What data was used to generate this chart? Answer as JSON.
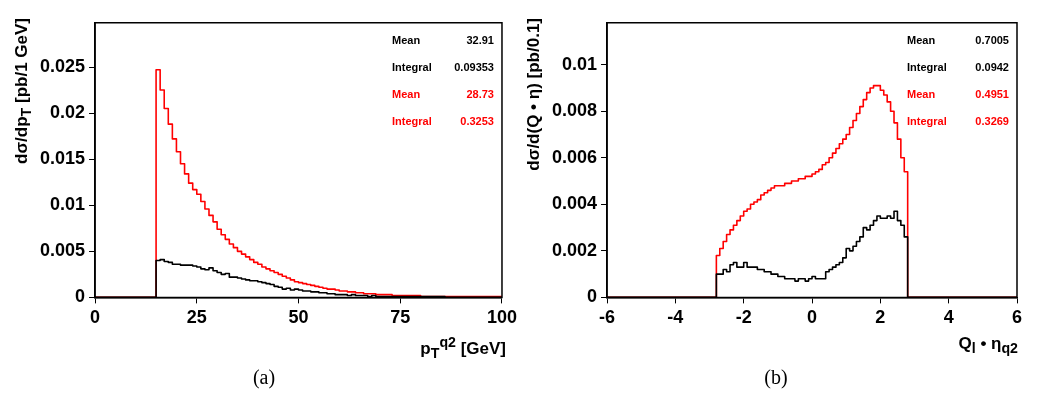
{
  "chart_data": [
    {
      "type": "histogram",
      "ylabel": "dσ/dp$_{T}$ [pb/1 GeV]",
      "xlabel": "p$_{T}$$^{q2}$ [GeV]",
      "xlim": [
        0,
        100
      ],
      "xticks": [
        0,
        25,
        50,
        75,
        100
      ],
      "ylim": [
        0,
        0.0298
      ],
      "yticks": [
        0,
        0.005,
        0.01,
        0.015,
        0.02,
        0.025
      ],
      "bins": [
        0,
        15,
        16,
        17,
        18,
        19,
        20,
        21,
        22,
        23,
        24,
        25,
        26,
        27,
        28,
        29,
        30,
        31,
        32,
        33,
        34,
        35,
        36,
        37,
        38,
        39,
        40,
        41,
        42,
        43,
        44,
        45,
        46,
        47,
        48,
        49,
        50,
        51,
        52,
        53,
        54,
        55,
        56,
        57,
        58,
        59,
        60,
        61,
        62,
        63,
        64,
        65,
        66,
        67,
        68,
        69,
        70,
        71,
        72,
        73,
        74,
        75,
        76,
        77,
        78,
        79,
        80,
        81,
        82,
        83,
        84,
        85,
        86,
        87,
        88,
        89,
        90,
        91,
        92,
        93,
        94,
        95,
        96,
        97,
        98,
        99,
        100
      ],
      "series": [
        {
          "color": "#000000",
          "values": [
            0,
            0.004,
            0.0041,
            0.0039,
            0.0038,
            0.0036,
            0.0036,
            0.0035,
            0.0035,
            0.0035,
            0.0034,
            0.0033,
            0.0031,
            0.003,
            0.0032,
            0.0029,
            0.0027,
            0.0025,
            0.0026,
            0.0022,
            0.0022,
            0.0021,
            0.002,
            0.0019,
            0.0018,
            0.0018,
            0.0017,
            0.0016,
            0.0015,
            0.0014,
            0.0012,
            0.0011,
            0.0009,
            0.001,
            0.0008,
            0.0009,
            0.0008,
            0.0007,
            0.0007,
            0.0006,
            0.0006,
            0.0005,
            0.0005,
            0.0004,
            0.0004,
            0.0003,
            0.0003,
            0.0003,
            0.0002,
            0.0003,
            0.0002,
            0.0002,
            0.0002,
            0.0001,
            0.0002,
            0.0001,
            0.0001,
            0.0001,
            0.0001,
            0.0001,
            0.0001,
            0.0001,
            0.0001,
            0.0001,
            0.0001,
            0.0001,
            0.0001,
            0.0001,
            0.0001,
            0.0001,
            0.0001,
            0.0001,
            0,
            0,
            0,
            0,
            0,
            0,
            0,
            0,
            0,
            0,
            0,
            0,
            0,
            0
          ]
        },
        {
          "color": "#ff0000",
          "values": [
            0,
            0.0247,
            0.0225,
            0.0205,
            0.0188,
            0.0172,
            0.0158,
            0.0145,
            0.0134,
            0.0124,
            0.0117,
            0.0112,
            0.0104,
            0.0096,
            0.0089,
            0.0082,
            0.0074,
            0.0068,
            0.0063,
            0.0058,
            0.0054,
            0.005,
            0.0047,
            0.0044,
            0.0041,
            0.0038,
            0.0036,
            0.0033,
            0.0031,
            0.0029,
            0.0027,
            0.0025,
            0.0023,
            0.0021,
            0.0019,
            0.0017,
            0.0016,
            0.0015,
            0.0014,
            0.0013,
            0.0012,
            0.0011,
            0.001,
            0.0009,
            0.0009,
            0.0008,
            0.0007,
            0.0007,
            0.0006,
            0.0006,
            0.0005,
            0.0005,
            0.0004,
            0.0004,
            0.0004,
            0.0003,
            0.0003,
            0.0003,
            0.0003,
            0.0002,
            0.0002,
            0.0002,
            0.0002,
            0.0002,
            0.0002,
            0.0002,
            0.0001,
            0.0001,
            0.0001,
            0.0001,
            0.0001,
            0.0001,
            0.0001,
            0.0001,
            0.0001,
            0.0001,
            0.0001,
            0.0001,
            0.0001,
            0.0001,
            0.0001,
            0.0001,
            0.0001,
            0.0001,
            0.0001,
            0.0001
          ]
        }
      ],
      "annotations": [
        "Mean 32.91",
        "Integral 0.09353",
        "Mean 28.73",
        "Integral 0.3253",
        "(a)"
      ]
    },
    {
      "type": "histogram",
      "ylabel": "dσ/d(Q • η) [pb/0.1]",
      "xlabel": "Q$_{l}$ • η$_{q2}$",
      "xlim": [
        -6,
        6
      ],
      "xticks": [
        -6,
        -4,
        -2,
        0,
        2,
        4,
        6
      ],
      "ylim": [
        0,
        0.0118
      ],
      "yticks": [
        0,
        0.002,
        0.004,
        0.006,
        0.008,
        0.01
      ],
      "bins": [
        -6,
        -2.8,
        -2.7,
        -2.6,
        -2.5,
        -2.4,
        -2.3,
        -2.2,
        -2.1,
        -2.0,
        -1.9,
        -1.8,
        -1.7,
        -1.6,
        -1.5,
        -1.4,
        -1.3,
        -1.2,
        -1.1,
        -1.0,
        -0.9,
        -0.8,
        -0.7,
        -0.6,
        -0.5,
        -0.4,
        -0.3,
        -0.2,
        -0.1,
        0,
        0.1,
        0.2,
        0.3,
        0.4,
        0.5,
        0.6,
        0.7,
        0.8,
        0.9,
        1.0,
        1.1,
        1.2,
        1.3,
        1.4,
        1.5,
        1.6,
        1.7,
        1.8,
        1.9,
        2.0,
        2.1,
        2.2,
        2.3,
        2.4,
        2.5,
        2.6,
        2.7,
        2.8,
        6
      ],
      "series": [
        {
          "color": "#000000",
          "values": [
            0,
            0.001,
            0.001,
            0.0012,
            0.0011,
            0.0014,
            0.0015,
            0.0013,
            0.0013,
            0.0015,
            0.0013,
            0.0013,
            0.0013,
            0.0012,
            0.0012,
            0.0011,
            0.0011,
            0.001,
            0.001,
            0.0009,
            0.0009,
            0.0008,
            0.0008,
            0.0008,
            0.0007,
            0.0008,
            0.0008,
            0.0007,
            0.0008,
            0.0009,
            0.0008,
            0.0008,
            0.0008,
            0.0011,
            0.0012,
            0.0013,
            0.0014,
            0.0015,
            0.0017,
            0.0021,
            0.002,
            0.0022,
            0.0024,
            0.0026,
            0.003,
            0.0029,
            0.0031,
            0.0033,
            0.0035,
            0.0034,
            0.0034,
            0.0035,
            0.0034,
            0.0037,
            0.0033,
            0.0031,
            0.0026,
            0
          ]
        },
        {
          "color": "#ff0000",
          "values": [
            0,
            0.0018,
            0.0021,
            0.0024,
            0.0027,
            0.0029,
            0.0031,
            0.0033,
            0.0035,
            0.0037,
            0.0038,
            0.004,
            0.0041,
            0.0042,
            0.0044,
            0.0045,
            0.0046,
            0.0047,
            0.0048,
            0.0048,
            0.0048,
            0.0049,
            0.0049,
            0.005,
            0.005,
            0.0051,
            0.0051,
            0.0052,
            0.0052,
            0.0053,
            0.0054,
            0.0055,
            0.0057,
            0.0058,
            0.006,
            0.0062,
            0.0064,
            0.0066,
            0.0068,
            0.007,
            0.0073,
            0.0076,
            0.0079,
            0.0082,
            0.0085,
            0.0088,
            0.009,
            0.0091,
            0.0091,
            0.0089,
            0.0087,
            0.0084,
            0.008,
            0.0075,
            0.0068,
            0.006,
            0.0054,
            0
          ]
        }
      ],
      "annotations": [
        "Mean 0.7005",
        "Integral 0.0942",
        "Mean 0.4951",
        "Integral 0.3269",
        "(b)"
      ]
    }
  ]
}
